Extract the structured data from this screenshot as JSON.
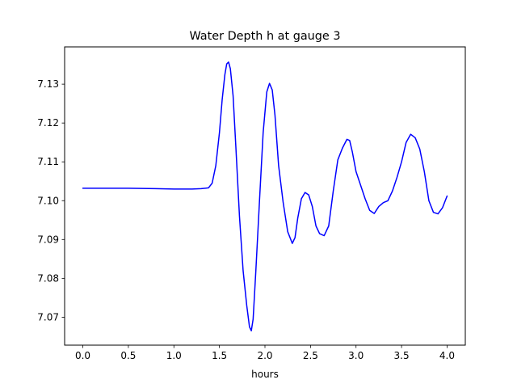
{
  "chart_data": {
    "type": "line",
    "title": "Water Depth h at gauge 3",
    "xlabel": "hours",
    "ylabel": "",
    "xlim": [
      -0.2,
      4.2
    ],
    "ylim": [
      7.0628,
      7.1396
    ],
    "xticks": [
      0.0,
      0.5,
      1.0,
      1.5,
      2.0,
      2.5,
      3.0,
      3.5,
      4.0
    ],
    "xtick_labels": [
      "0.0",
      "0.5",
      "1.0",
      "1.5",
      "2.0",
      "2.5",
      "3.0",
      "3.5",
      "4.0"
    ],
    "yticks": [
      7.07,
      7.08,
      7.09,
      7.1,
      7.11,
      7.12,
      7.13
    ],
    "ytick_labels": [
      "7.07",
      "7.08",
      "7.09",
      "7.10",
      "7.11",
      "7.12",
      "7.13"
    ],
    "grid": false,
    "legend": "none",
    "series": [
      {
        "color": "#0000ff",
        "x": [
          0.0,
          0.5,
          0.8,
          1.0,
          1.2,
          1.3,
          1.38,
          1.42,
          1.46,
          1.5,
          1.53,
          1.56,
          1.58,
          1.6,
          1.62,
          1.65,
          1.68,
          1.72,
          1.76,
          1.8,
          1.83,
          1.85,
          1.87,
          1.9,
          1.94,
          1.98,
          2.02,
          2.05,
          2.08,
          2.11,
          2.15,
          2.2,
          2.25,
          2.3,
          2.33,
          2.36,
          2.4,
          2.44,
          2.48,
          2.52,
          2.56,
          2.6,
          2.65,
          2.7,
          2.75,
          2.8,
          2.85,
          2.9,
          2.93,
          2.96,
          3.0,
          3.05,
          3.1,
          3.15,
          3.2,
          3.25,
          3.3,
          3.35,
          3.4,
          3.45,
          3.5,
          3.55,
          3.6,
          3.65,
          3.7,
          3.75,
          3.8,
          3.85,
          3.9,
          3.95,
          4.0
        ],
        "y": [
          7.1032,
          7.1032,
          7.1031,
          7.103,
          7.103,
          7.1031,
          7.1033,
          7.1045,
          7.109,
          7.1175,
          7.126,
          7.1325,
          7.1352,
          7.1357,
          7.134,
          7.127,
          7.114,
          7.096,
          7.082,
          7.073,
          7.0675,
          7.0665,
          7.0695,
          7.082,
          7.1,
          7.1175,
          7.128,
          7.1302,
          7.1285,
          7.122,
          7.109,
          7.0995,
          7.092,
          7.089,
          7.0905,
          7.0955,
          7.1005,
          7.1021,
          7.1015,
          7.0985,
          7.0935,
          7.0915,
          7.091,
          7.0935,
          7.1025,
          7.1105,
          7.1135,
          7.1158,
          7.1155,
          7.1125,
          7.1075,
          7.104,
          7.1005,
          7.0975,
          7.0967,
          7.0985,
          7.0995,
          7.1,
          7.1025,
          7.106,
          7.11,
          7.115,
          7.1171,
          7.1162,
          7.1133,
          7.1075,
          7.1,
          7.097,
          7.0966,
          7.0982,
          7.1012
        ]
      }
    ]
  }
}
